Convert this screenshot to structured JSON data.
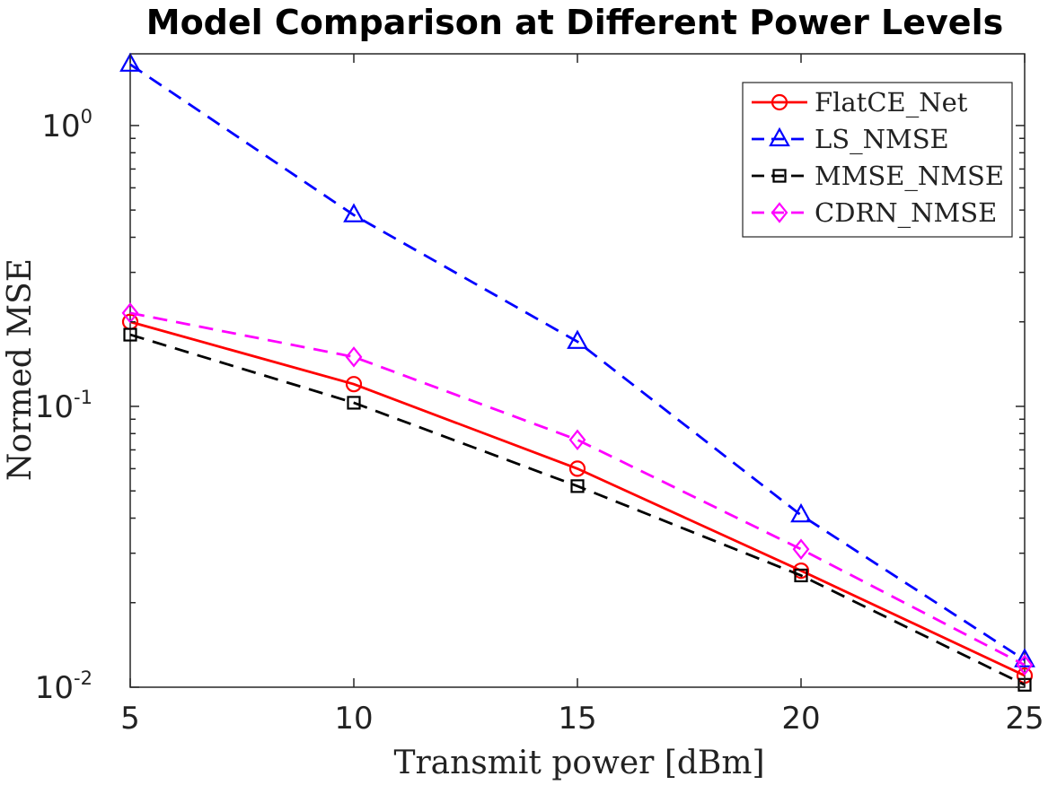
{
  "chart_data": {
    "type": "line",
    "title": "Model Comparison at Different Power Levels",
    "xlabel": "Transmit power [dBm]",
    "ylabel": "Normed MSE",
    "x": [
      5,
      10,
      15,
      20,
      25
    ],
    "xlim": [
      5,
      25
    ],
    "xticks": [
      "5",
      "10",
      "15",
      "20",
      "25"
    ],
    "yscale": "log",
    "ylim": [
      0.01,
      1.8
    ],
    "yticks": [
      {
        "base": "10",
        "exp": "-2"
      },
      {
        "base": "10",
        "exp": "-1"
      },
      {
        "base": "10",
        "exp": "0"
      }
    ],
    "grid": false,
    "legend_position": "top-right",
    "series": [
      {
        "name": "FlatCE_Net",
        "values": [
          0.2,
          0.12,
          0.06,
          0.026,
          0.011
        ],
        "color": "#ff0000",
        "dash": "solid",
        "marker": "circle"
      },
      {
        "name": "LS_NMSE",
        "values": [
          1.65,
          0.48,
          0.17,
          0.041,
          0.0125
        ],
        "color": "#0000ff",
        "dash": "dashed",
        "marker": "triangle"
      },
      {
        "name": "MMSE_NMSE",
        "values": [
          0.18,
          0.103,
          0.052,
          0.025,
          0.0102
        ],
        "color": "#000000",
        "dash": "dashed",
        "marker": "square"
      },
      {
        "name": "CDRN_NMSE",
        "values": [
          0.215,
          0.15,
          0.076,
          0.031,
          0.012
        ],
        "color": "#ff00ff",
        "dash": "dashed",
        "marker": "diamond"
      }
    ]
  }
}
